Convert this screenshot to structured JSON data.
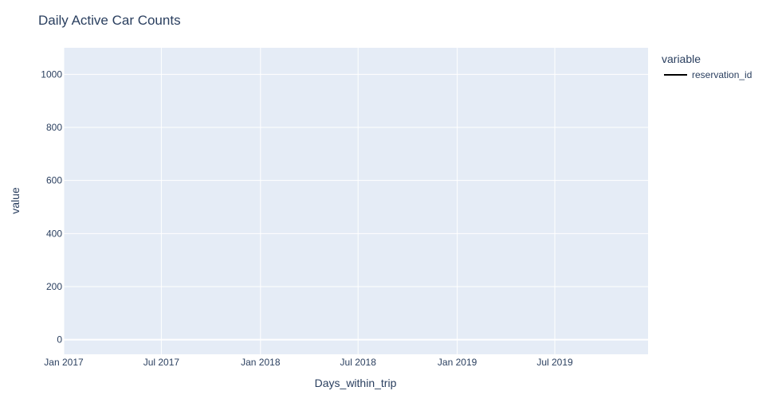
{
  "chart_data": {
    "type": "line",
    "title": "Daily Active Car Counts",
    "xlabel": "Days_within_trip",
    "ylabel": "value",
    "x_type": "date",
    "xlim": [
      "2017-01-01",
      "2019-12-21"
    ],
    "ylim": [
      -55,
      1100
    ],
    "x_ticks": [
      {
        "date": "2017-01-01",
        "label": "Jan 2017"
      },
      {
        "date": "2017-07-01",
        "label": "Jul 2017"
      },
      {
        "date": "2018-01-01",
        "label": "Jan 2018"
      },
      {
        "date": "2018-07-01",
        "label": "Jul 2018"
      },
      {
        "date": "2019-01-01",
        "label": "Jan 2019"
      },
      {
        "date": "2019-07-01",
        "label": "Jul 2019"
      }
    ],
    "y_ticks": [
      0,
      200,
      400,
      600,
      800,
      1000
    ],
    "grid": true,
    "background": "#e5ecf6",
    "legend": {
      "title": "variable",
      "placement": "right"
    },
    "series": [
      {
        "name": "reservation_id",
        "color": "#000000",
        "x": [],
        "y": []
      }
    ]
  }
}
